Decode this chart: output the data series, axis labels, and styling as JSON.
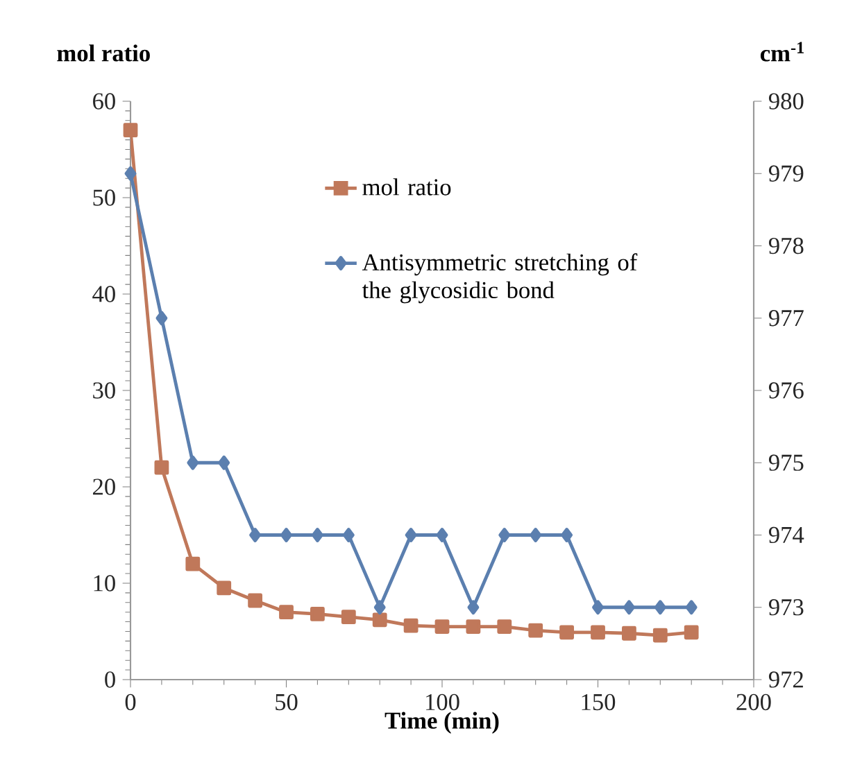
{
  "chart_data": {
    "type": "line",
    "xlabel": "Time (min)",
    "ylabel": "mol ratio",
    "y2label": "cm$^{-1}$",
    "x": [
      0,
      10,
      20,
      30,
      40,
      50,
      60,
      70,
      80,
      90,
      100,
      110,
      120,
      130,
      140,
      150,
      160,
      170,
      180
    ],
    "series": [
      {
        "name": "mol ratio",
        "color": "#c0785a",
        "marker": "square",
        "values": [
          57,
          22,
          12,
          9.5,
          8.2,
          7,
          6.8,
          6.5,
          6.2,
          5.6,
          5.5,
          5.5,
          5.5,
          5.1,
          4.9,
          4.9,
          4.8,
          4.6,
          4.9
        ]
      },
      {
        "name": "Antisymmetric stretching of the glycosidic bond",
        "color": "#5b7faf",
        "marker": "diamond",
        "axis": "y2",
        "values": [
          979,
          977,
          975,
          975,
          974,
          974,
          974,
          974,
          973,
          974,
          974,
          973,
          974,
          974,
          974,
          973,
          973,
          973,
          973
        ]
      }
    ],
    "xlim": [
      0,
      200
    ],
    "xticks": [
      0,
      50,
      100,
      150,
      200
    ],
    "ylim": [
      0,
      60
    ],
    "yticks": [
      0,
      10,
      20,
      30,
      40,
      50,
      60
    ],
    "y2lim": [
      972,
      980
    ],
    "y2ticks": [
      972,
      973,
      974,
      975,
      976,
      977,
      978,
      979,
      980
    ],
    "grid": false,
    "legend": "top",
    "line_style": "solid"
  }
}
